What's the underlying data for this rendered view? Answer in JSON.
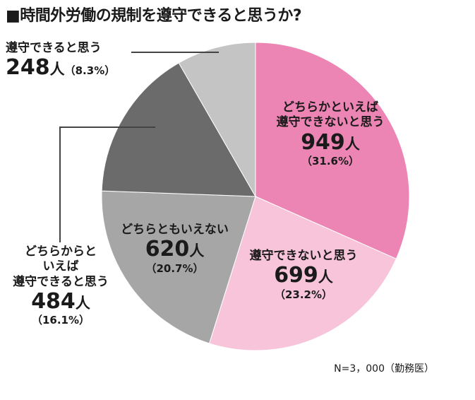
{
  "title": "■時間外労働の規制を遵守できると思うか?",
  "note": "N=3，000（勤務医）",
  "colors": {
    "pink_dark": "#ec85b3",
    "pink_light": "#f7c4d9",
    "gray_mid": "#a6a6a6",
    "gray_dark": "#6b6b6b",
    "gray_light": "#c4c4c4"
  },
  "chart_data": {
    "type": "pie",
    "title": "時間外労働の規制を遵守できると思うか?",
    "total_label": "N=3，000（勤務医）",
    "slices": [
      {
        "label": "どちらかといえば遵守できないと思う",
        "label_line1": "どちらかといえば",
        "label_line2": "遵守できないと思う",
        "count": "949",
        "unit": "人",
        "value": 31.6,
        "pct": "（31.6%）",
        "color": "#ec85b3"
      },
      {
        "label": "遵守できないと思う",
        "count": "699",
        "unit": "人",
        "value": 23.2,
        "pct": "（23.2%）",
        "color": "#f7c4d9"
      },
      {
        "label": "どちらともいえない",
        "count": "620",
        "unit": "人",
        "value": 20.7,
        "pct": "（20.7%）",
        "color": "#a6a6a6"
      },
      {
        "label": "どちらかといえば遵守できると思う",
        "label_line1": "どちらからと",
        "label_line2": "いえば",
        "label_line3": "遵守できると思う",
        "count": "484",
        "unit": "人",
        "value": 16.1,
        "pct": "（16.1%）",
        "color": "#6b6b6b"
      },
      {
        "label": "遵守できると思う",
        "count": "248",
        "unit": "人",
        "value": 8.3,
        "pct": "（8.3%）",
        "color": "#c4c4c4"
      }
    ]
  }
}
